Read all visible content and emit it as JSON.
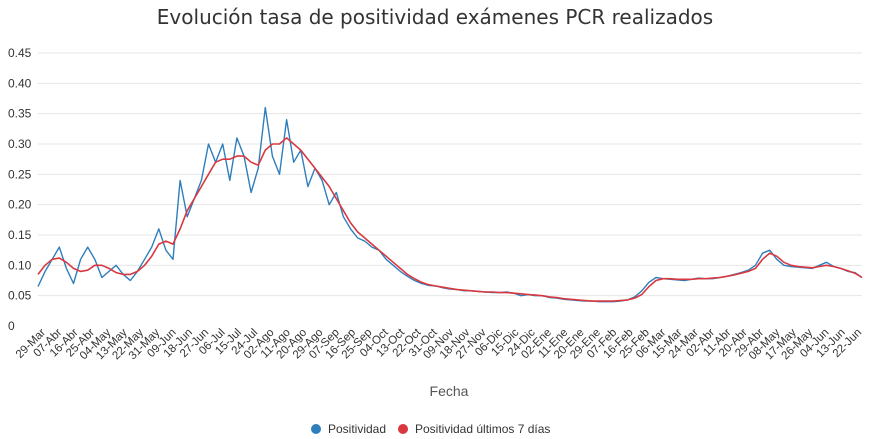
{
  "chart_data": {
    "type": "line",
    "title": "Evolución tasa de positividad exámenes PCR realizados",
    "xlabel": "Fecha",
    "ylabel": "",
    "ylim": [
      0,
      0.45
    ],
    "yticks": [
      "0",
      "0.05",
      "0.10",
      "0.15",
      "0.20",
      "0.25",
      "0.30",
      "0.35",
      "0.40",
      "0.45"
    ],
    "grid": true,
    "legend_position": "bottom",
    "x_tick_labels": [
      "29-Mar",
      "07-Abr",
      "16-Abr",
      "25-Abr",
      "04-May",
      "13-May",
      "22-May",
      "31-May",
      "09-Jun",
      "18-Jun",
      "27-Jun",
      "06-Jul",
      "15-Jul",
      "24-Jul",
      "02-Ago",
      "11-Ago",
      "20-Ago",
      "29-Ago",
      "07-Sep",
      "16-Sep",
      "25-Sep",
      "04-Oct",
      "13-Oct",
      "22-Oct",
      "31-Oct",
      "09-Nov",
      "18-Nov",
      "27-Nov",
      "06-Dic",
      "15-Dic",
      "24-Dic",
      "02-Ene",
      "11-Ene",
      "20-Ene",
      "29-Ene",
      "07-Feb",
      "16-Feb",
      "25-Feb",
      "06-Mar",
      "15-Mar",
      "24-Mar",
      "02-Abr",
      "11-Abr",
      "20-Abr",
      "29-Abr",
      "08-May",
      "17-May",
      "26-May",
      "04-Jun",
      "13-Jun",
      "22-Jun"
    ],
    "series": [
      {
        "name": "Positividad",
        "color": "#2f7ebc",
        "values": [
          0.065,
          0.09,
          0.11,
          0.13,
          0.095,
          0.07,
          0.11,
          0.13,
          0.11,
          0.08,
          0.09,
          0.1,
          0.085,
          0.075,
          0.09,
          0.11,
          0.13,
          0.16,
          0.125,
          0.11,
          0.24,
          0.18,
          0.21,
          0.24,
          0.3,
          0.27,
          0.3,
          0.24,
          0.31,
          0.28,
          0.22,
          0.26,
          0.36,
          0.28,
          0.25,
          0.34,
          0.27,
          0.29,
          0.23,
          0.26,
          0.24,
          0.2,
          0.22,
          0.18,
          0.16,
          0.145,
          0.14,
          0.13,
          0.125,
          0.11,
          0.1,
          0.09,
          0.082,
          0.075,
          0.07,
          0.067,
          0.066,
          0.063,
          0.061,
          0.06,
          0.058,
          0.058,
          0.057,
          0.056,
          0.055,
          0.055,
          0.056,
          0.054,
          0.05,
          0.052,
          0.05,
          0.05,
          0.047,
          0.046,
          0.044,
          0.043,
          0.042,
          0.041,
          0.041,
          0.04,
          0.04,
          0.04,
          0.041,
          0.043,
          0.048,
          0.058,
          0.072,
          0.08,
          0.078,
          0.077,
          0.076,
          0.075,
          0.077,
          0.079,
          0.078,
          0.078,
          0.08,
          0.082,
          0.085,
          0.088,
          0.092,
          0.1,
          0.12,
          0.125,
          0.11,
          0.1,
          0.098,
          0.097,
          0.096,
          0.095,
          0.1,
          0.105,
          0.098,
          0.095,
          0.09,
          0.088,
          0.08
        ]
      },
      {
        "name": "Positividad últimos 7 días",
        "color": "#d9383f",
        "values": [
          0.085,
          0.1,
          0.11,
          0.112,
          0.105,
          0.095,
          0.09,
          0.092,
          0.1,
          0.1,
          0.095,
          0.088,
          0.085,
          0.085,
          0.09,
          0.1,
          0.115,
          0.135,
          0.14,
          0.135,
          0.16,
          0.19,
          0.21,
          0.23,
          0.25,
          0.27,
          0.275,
          0.275,
          0.28,
          0.28,
          0.27,
          0.265,
          0.29,
          0.3,
          0.3,
          0.31,
          0.3,
          0.29,
          0.275,
          0.26,
          0.245,
          0.23,
          0.21,
          0.19,
          0.17,
          0.155,
          0.145,
          0.135,
          0.125,
          0.115,
          0.105,
          0.095,
          0.085,
          0.078,
          0.072,
          0.068,
          0.066,
          0.064,
          0.062,
          0.06,
          0.059,
          0.058,
          0.057,
          0.056,
          0.056,
          0.055,
          0.055,
          0.054,
          0.053,
          0.052,
          0.051,
          0.05,
          0.048,
          0.047,
          0.045,
          0.044,
          0.043,
          0.042,
          0.041,
          0.041,
          0.041,
          0.041,
          0.042,
          0.043,
          0.046,
          0.052,
          0.065,
          0.075,
          0.078,
          0.078,
          0.077,
          0.077,
          0.077,
          0.078,
          0.078,
          0.079,
          0.08,
          0.082,
          0.084,
          0.087,
          0.09,
          0.095,
          0.11,
          0.12,
          0.115,
          0.105,
          0.1,
          0.098,
          0.097,
          0.096,
          0.098,
          0.1,
          0.098,
          0.095,
          0.091,
          0.087,
          0.08
        ]
      }
    ]
  }
}
